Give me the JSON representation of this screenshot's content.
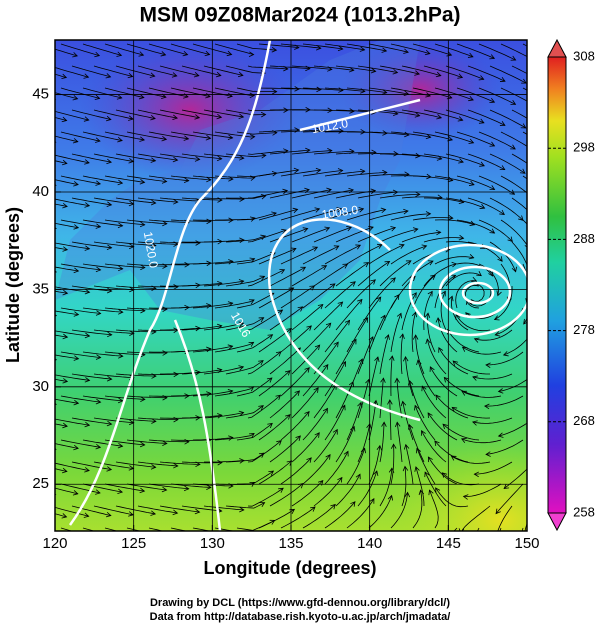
{
  "chart_data": {
    "type": "map",
    "title": "MSM 09Z08Mar2024 (1013.2hPa)",
    "x_label": "Longitude (degrees)",
    "y_label": "Latitude  (degrees)",
    "xlim": [
      120,
      150
    ],
    "xticks": [
      120,
      125,
      130,
      135,
      140,
      145,
      150
    ],
    "ylim": [
      22.6,
      47.8
    ],
    "yticks": [
      25,
      30,
      35,
      40,
      45
    ],
    "grid": true,
    "colorbar": {
      "lim": [
        258,
        308
      ],
      "ticks": [
        258,
        268,
        278,
        288,
        298,
        308
      ]
    },
    "annotations": [
      "1012.0",
      "1008.0",
      "1020.0",
      "1016"
    ],
    "footer": [
      "Drawing by DCL (https://www.gfd-dennou.org/library/dcl/)",
      "Data from http://database.rish.kyoto-u.ac.jp/arch/jmadata/"
    ]
  }
}
